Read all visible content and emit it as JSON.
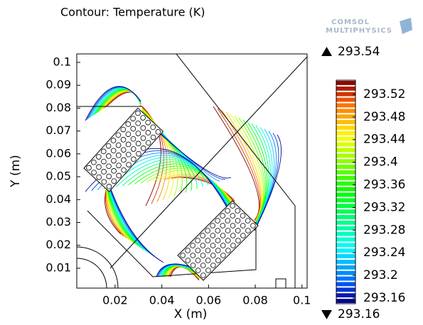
{
  "chart_data": {
    "type": "contour",
    "title": "Contour: Temperature (K)",
    "logo": [
      "COMSOL",
      "MULTIPHYSICS"
    ],
    "xlabel": "X (m)",
    "ylabel": "Y (m)",
    "xlim": [
      0.0036,
      0.1022
    ],
    "ylim": [
      0.0013,
      0.1037
    ],
    "xticks": [
      0.02,
      0.04,
      0.06,
      0.08,
      0.1
    ],
    "yticks": [
      0.01,
      0.02,
      0.03,
      0.04,
      0.05,
      0.06,
      0.07,
      0.08,
      0.09,
      0.1
    ],
    "colorbar": {
      "lim": [
        293.15,
        293.545
      ],
      "ticks": [
        293.16,
        293.2,
        293.24,
        293.28,
        293.32,
        293.36,
        293.4,
        293.44,
        293.48,
        293.52
      ],
      "max": 293.54,
      "min": 293.16
    }
  }
}
